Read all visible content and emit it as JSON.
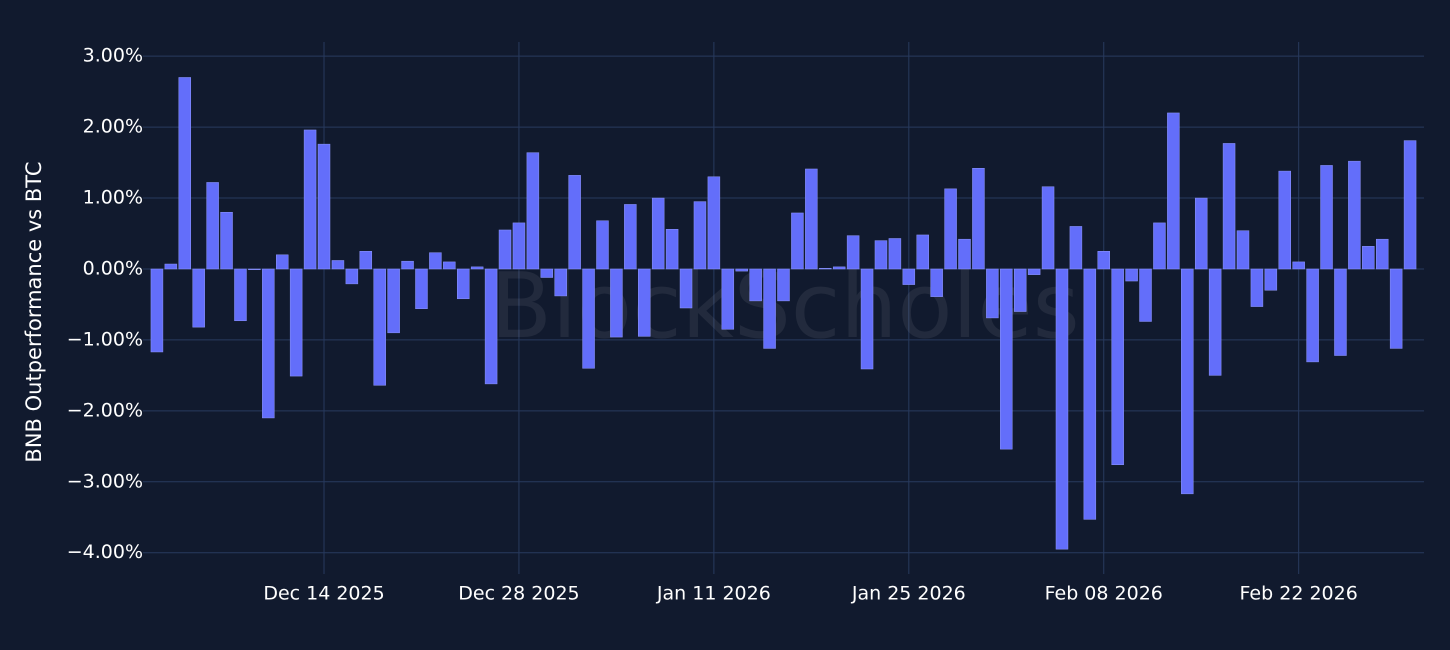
{
  "chart_data": {
    "type": "bar",
    "y_label": "BNB Outperformance vs BTC",
    "watermark": "BlockScholes",
    "x": [
      "2025-12-02",
      "2025-12-03",
      "2025-12-04",
      "2025-12-05",
      "2025-12-06",
      "2025-12-07",
      "2025-12-08",
      "2025-12-09",
      "2025-12-10",
      "2025-12-11",
      "2025-12-12",
      "2025-12-13",
      "2025-12-14",
      "2025-12-15",
      "2025-12-16",
      "2025-12-17",
      "2025-12-18",
      "2025-12-19",
      "2025-12-20",
      "2025-12-21",
      "2025-12-22",
      "2025-12-23",
      "2025-12-24",
      "2025-12-25",
      "2025-12-26",
      "2025-12-27",
      "2025-12-28",
      "2025-12-29",
      "2025-12-30",
      "2025-12-31",
      "2026-01-01",
      "2026-01-02",
      "2026-01-03",
      "2026-01-04",
      "2026-01-05",
      "2026-01-06",
      "2026-01-07",
      "2026-01-08",
      "2026-01-09",
      "2026-01-10",
      "2026-01-11",
      "2026-01-12",
      "2026-01-13",
      "2026-01-14",
      "2026-01-15",
      "2026-01-16",
      "2026-01-17",
      "2026-01-18",
      "2026-01-19",
      "2026-01-20",
      "2026-01-21",
      "2026-01-22",
      "2026-01-23",
      "2026-01-24",
      "2026-01-25",
      "2026-01-26",
      "2026-01-27",
      "2026-01-28",
      "2026-01-29",
      "2026-01-30",
      "2026-01-31",
      "2026-02-01",
      "2026-02-02",
      "2026-02-03",
      "2026-02-04",
      "2026-02-05",
      "2026-02-06",
      "2026-02-07",
      "2026-02-08",
      "2026-02-09",
      "2026-02-10",
      "2026-02-11",
      "2026-02-12",
      "2026-02-13",
      "2026-02-14",
      "2026-02-15",
      "2026-02-16",
      "2026-02-17",
      "2026-02-18",
      "2026-02-19",
      "2026-02-20",
      "2026-02-21",
      "2026-02-22",
      "2026-02-23",
      "2026-02-24",
      "2026-02-25",
      "2026-02-26",
      "2026-02-27",
      "2026-02-28",
      "2026-03-01",
      "2026-03-02"
    ],
    "values": [
      -1.17,
      0.07,
      2.7,
      -0.82,
      1.22,
      0.8,
      -0.73,
      -0.01,
      -2.1,
      0.2,
      -1.51,
      1.96,
      1.76,
      0.12,
      -0.21,
      0.25,
      -1.64,
      -0.9,
      0.11,
      -0.56,
      0.23,
      0.1,
      -0.42,
      0.03,
      -1.62,
      0.55,
      0.65,
      1.64,
      -0.12,
      -0.38,
      1.32,
      -1.4,
      0.68,
      -0.96,
      0.91,
      -0.95,
      1.0,
      0.56,
      -0.55,
      0.95,
      1.3,
      -0.85,
      -0.03,
      -0.45,
      -1.12,
      -0.45,
      0.79,
      1.41,
      0.01,
      0.03,
      0.47,
      -1.41,
      0.4,
      0.43,
      -0.22,
      0.48,
      -0.39,
      1.13,
      0.42,
      1.42,
      -0.69,
      -2.54,
      -0.6,
      -0.08,
      1.16,
      -3.95,
      0.6,
      -3.53,
      0.25,
      -2.76,
      -0.17,
      -0.74,
      0.65,
      2.2,
      -3.17,
      1.0,
      -1.5,
      1.77,
      0.54,
      -0.53,
      -0.3,
      1.38,
      0.1,
      -1.31,
      1.46,
      -1.22,
      1.52,
      0.32,
      0.42,
      -1.12,
      1.81
    ],
    "color": "#636efa",
    "xlim": [
      "2025-12-01",
      "2026-03-03"
    ],
    "xticks": [
      {
        "value": "2025-12-14",
        "label": "Dec 14 2025"
      },
      {
        "value": "2025-12-28",
        "label": "Dec 28 2025"
      },
      {
        "value": "2026-01-11",
        "label": "Jan 11 2026"
      },
      {
        "value": "2026-01-25",
        "label": "Jan 25 2026"
      },
      {
        "value": "2026-02-08",
        "label": "Feb 08 2026"
      },
      {
        "value": "2026-02-22",
        "label": "Feb 22 2026"
      }
    ],
    "ylim": [
      -4.3,
      3.2
    ],
    "yticks": [
      {
        "value": -4,
        "label": "−4.00%"
      },
      {
        "value": -3,
        "label": "−3.00%"
      },
      {
        "value": -2,
        "label": "−2.00%"
      },
      {
        "value": -1,
        "label": "−1.00%"
      },
      {
        "value": 0,
        "label": "0.00%"
      },
      {
        "value": 1,
        "label": "1.00%"
      },
      {
        "value": 2,
        "label": "2.00%"
      },
      {
        "value": 3,
        "label": "3.00%"
      }
    ],
    "grid": true
  }
}
